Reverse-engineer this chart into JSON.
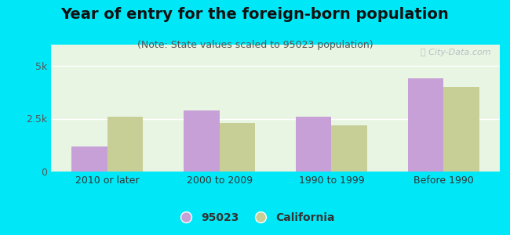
{
  "title": "Year of entry for the foreign-born population",
  "subtitle": "(Note: State values scaled to 95023 population)",
  "categories": [
    "2010 or later",
    "2000 to 2009",
    "1990 to 1999",
    "Before 1990"
  ],
  "values_95023": [
    1200,
    2900,
    2600,
    4400
  ],
  "values_california": [
    2600,
    2300,
    2200,
    4000
  ],
  "color_95023": "#c8a0d8",
  "color_california": "#c8cf96",
  "background_outer": "#00e8f8",
  "background_inner": "#e8f5e2",
  "ylim": [
    0,
    6000
  ],
  "yticks": [
    0,
    2500,
    5000
  ],
  "ytick_labels": [
    "0",
    "2.5k",
    "5k"
  ],
  "bar_width": 0.32,
  "legend_label_95023": "95023",
  "legend_label_california": "California",
  "title_fontsize": 14,
  "subtitle_fontsize": 9,
  "tick_fontsize": 9,
  "legend_fontsize": 10
}
